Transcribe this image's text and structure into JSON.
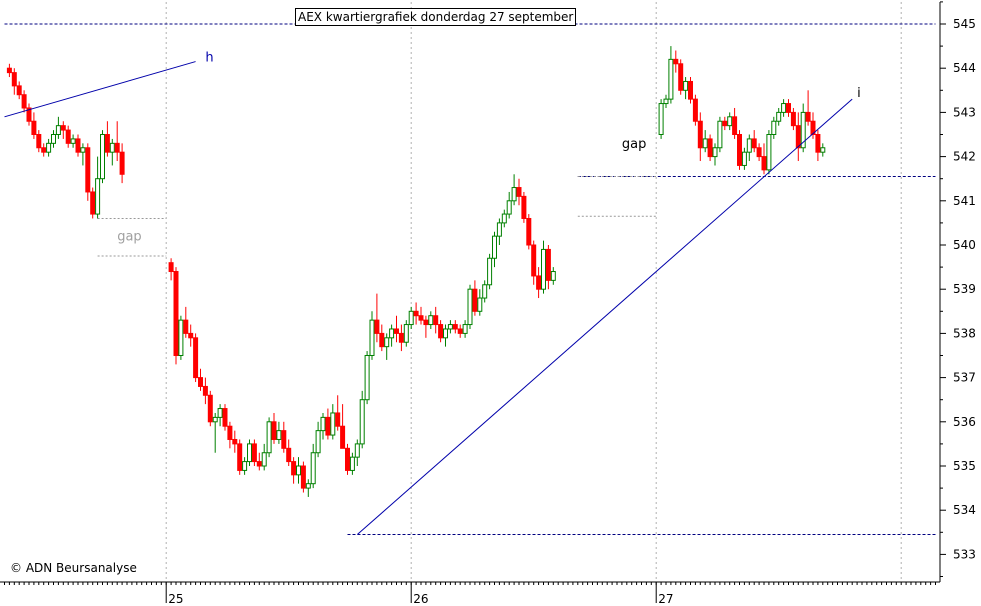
{
  "chart_data": {
    "type": "candlestick",
    "title": "AEX kwartiergrafiek donderdag 27 september",
    "copyright": "© ADN Beursanalyse",
    "colors": {
      "up": "#008000",
      "down": "#ff0000",
      "trendline": "#0000aa",
      "grid": "#b0b0b0",
      "level": "#000080",
      "gap_line": "#999999",
      "gap_label": "#000000",
      "gap_label_faded": "#a0a0a0"
    },
    "y_axis": {
      "side": "right",
      "min": 532.5,
      "max": 545.5,
      "ticks": [
        533,
        534,
        535,
        536,
        537,
        538,
        539,
        540,
        541,
        542,
        543,
        544,
        545
      ]
    },
    "x_axis": {
      "labels": [
        {
          "label": "25",
          "index": 33
        },
        {
          "label": "26",
          "index": 83
        },
        {
          "label": "27",
          "index": 133
        }
      ],
      "minor_gridlines_at": [
        33,
        83,
        133,
        183
      ]
    },
    "x_index_range": [
      0,
      190
    ],
    "horizontal_levels": [
      {
        "value": 545,
        "from": 0,
        "to": 190,
        "style": "dashed"
      },
      {
        "value": 541.55,
        "from": 117,
        "to": 190,
        "style": "dashed"
      },
      {
        "value": 533.45,
        "from": 70,
        "to": 190,
        "style": "dashed"
      }
    ],
    "gaps": [
      {
        "label": "gap",
        "y_from": 540.6,
        "y_to": 539.75,
        "x_from": 19,
        "x_to": 33,
        "label_at": {
          "x": 23,
          "y": 540.1
        },
        "faded": true
      },
      {
        "label": "gap",
        "y_from": 541.55,
        "y_to": 540.65,
        "x_from": 117,
        "x_to": 133,
        "label_at": {
          "x": 126,
          "y": 542.2
        },
        "faded": false
      }
    ],
    "annotations": [
      {
        "label": "h",
        "x": 41,
        "y": 544.15
      },
      {
        "label": "i",
        "x": 174,
        "y": 543.35
      }
    ],
    "trendlines": [
      {
        "from": [
          0,
          542.9
        ],
        "to": [
          39,
          544.15
        ]
      },
      {
        "from": [
          72,
          533.45
        ],
        "to": [
          173,
          543.3
        ]
      }
    ],
    "candles": [
      [
        1,
        544.0,
        544.1,
        543.8,
        543.9
      ],
      [
        2,
        543.9,
        544.0,
        543.4,
        543.6
      ],
      [
        3,
        543.6,
        543.7,
        543.3,
        543.4
      ],
      [
        4,
        543.4,
        543.5,
        543.0,
        543.1
      ],
      [
        5,
        543.1,
        543.2,
        542.7,
        542.8
      ],
      [
        6,
        542.8,
        543.0,
        542.4,
        542.5
      ],
      [
        7,
        542.5,
        542.6,
        542.1,
        542.2
      ],
      [
        8,
        542.2,
        542.3,
        542.0,
        542.1
      ],
      [
        9,
        542.1,
        542.4,
        542.0,
        542.3
      ],
      [
        10,
        542.3,
        542.6,
        542.2,
        542.5
      ],
      [
        11,
        542.5,
        542.9,
        542.4,
        542.7
      ],
      [
        12,
        542.7,
        542.8,
        542.4,
        542.6
      ],
      [
        13,
        542.6,
        542.7,
        542.2,
        542.3
      ],
      [
        14,
        542.3,
        542.5,
        542.2,
        542.4
      ],
      [
        15,
        542.4,
        542.5,
        542.0,
        542.1
      ],
      [
        16,
        542.1,
        542.3,
        541.8,
        542.2
      ],
      [
        17,
        542.2,
        542.3,
        541.0,
        541.2
      ],
      [
        18,
        541.2,
        541.3,
        540.6,
        540.7
      ],
      [
        19,
        540.7,
        542.0,
        540.6,
        541.5
      ],
      [
        20,
        541.5,
        542.6,
        541.4,
        542.5
      ],
      [
        21,
        542.5,
        542.8,
        542.0,
        542.1
      ],
      [
        22,
        542.1,
        542.4,
        541.8,
        542.3
      ],
      [
        23,
        542.3,
        542.8,
        541.9,
        542.1
      ],
      [
        24,
        542.1,
        542.3,
        541.4,
        541.6
      ],
      [
        34,
        539.6,
        539.7,
        539.2,
        539.4
      ],
      [
        35,
        539.4,
        539.5,
        537.3,
        537.5
      ],
      [
        36,
        537.5,
        538.4,
        537.4,
        538.3
      ],
      [
        37,
        538.3,
        538.6,
        537.9,
        538.0
      ],
      [
        38,
        538.0,
        538.2,
        537.7,
        537.9
      ],
      [
        39,
        537.9,
        538.0,
        536.9,
        537.0
      ],
      [
        40,
        537.0,
        537.2,
        536.7,
        536.8
      ],
      [
        41,
        536.8,
        537.0,
        536.4,
        536.6
      ],
      [
        42,
        536.6,
        536.7,
        535.9,
        536.0
      ],
      [
        43,
        536.0,
        536.2,
        535.3,
        536.1
      ],
      [
        44,
        536.1,
        536.4,
        535.9,
        536.3
      ],
      [
        45,
        536.3,
        536.4,
        535.8,
        535.9
      ],
      [
        46,
        535.9,
        536.0,
        535.4,
        535.6
      ],
      [
        47,
        535.6,
        535.8,
        535.3,
        535.5
      ],
      [
        48,
        535.5,
        535.6,
        534.8,
        534.9
      ],
      [
        49,
        534.9,
        535.2,
        534.8,
        535.1
      ],
      [
        50,
        535.1,
        535.6,
        535.0,
        535.5
      ],
      [
        51,
        535.5,
        535.6,
        535.0,
        535.1
      ],
      [
        52,
        535.1,
        535.3,
        534.9,
        535.0
      ],
      [
        53,
        535.0,
        535.5,
        534.9,
        535.3
      ],
      [
        54,
        535.3,
        536.1,
        535.2,
        536.0
      ],
      [
        55,
        536.0,
        536.2,
        535.5,
        535.6
      ],
      [
        56,
        535.6,
        536.0,
        535.5,
        535.8
      ],
      [
        57,
        535.8,
        536.0,
        535.3,
        535.4
      ],
      [
        58,
        535.4,
        535.6,
        535.0,
        535.1
      ],
      [
        59,
        535.1,
        535.2,
        534.6,
        534.8
      ],
      [
        60,
        534.8,
        535.2,
        534.6,
        535.0
      ],
      [
        61,
        535.0,
        535.1,
        534.4,
        534.5
      ],
      [
        62,
        534.5,
        534.7,
        534.3,
        534.6
      ],
      [
        63,
        534.6,
        535.5,
        534.5,
        535.3
      ],
      [
        64,
        535.3,
        536.0,
        535.2,
        535.8
      ],
      [
        65,
        535.8,
        536.2,
        535.6,
        536.1
      ],
      [
        66,
        536.1,
        536.3,
        535.6,
        535.7
      ],
      [
        67,
        535.7,
        536.4,
        535.6,
        536.2
      ],
      [
        68,
        536.2,
        536.6,
        535.8,
        535.9
      ],
      [
        69,
        535.9,
        536.4,
        535.5,
        535.4
      ],
      [
        70,
        535.4,
        535.5,
        534.8,
        534.9
      ],
      [
        71,
        534.9,
        535.3,
        534.8,
        535.2
      ],
      [
        72,
        535.2,
        535.6,
        535.0,
        535.5
      ],
      [
        73,
        535.5,
        536.7,
        535.4,
        536.5
      ],
      [
        74,
        536.5,
        537.6,
        536.4,
        537.5
      ],
      [
        75,
        537.5,
        538.5,
        537.4,
        538.3
      ],
      [
        76,
        538.3,
        538.9,
        537.8,
        538.0
      ],
      [
        77,
        538.0,
        538.2,
        537.6,
        537.7
      ],
      [
        78,
        537.7,
        538.0,
        537.4,
        537.9
      ],
      [
        79,
        537.9,
        538.2,
        537.7,
        538.1
      ],
      [
        80,
        538.1,
        538.4,
        537.8,
        538.0
      ],
      [
        81,
        538.0,
        538.2,
        537.6,
        537.8
      ],
      [
        82,
        537.8,
        538.3,
        537.7,
        538.2
      ],
      [
        83,
        538.2,
        538.6,
        538.1,
        538.5
      ],
      [
        84,
        538.5,
        538.7,
        538.2,
        538.4
      ],
      [
        85,
        538.4,
        538.6,
        538.2,
        538.3
      ],
      [
        86,
        538.3,
        538.4,
        537.9,
        538.2
      ],
      [
        87,
        538.2,
        538.5,
        538.1,
        538.4
      ],
      [
        88,
        538.4,
        538.6,
        538.0,
        538.2
      ],
      [
        89,
        538.2,
        538.3,
        537.8,
        537.9
      ],
      [
        90,
        537.9,
        538.2,
        537.7,
        538.1
      ],
      [
        91,
        538.1,
        538.3,
        538.0,
        538.2
      ],
      [
        92,
        538.2,
        538.3,
        538.0,
        538.1
      ],
      [
        93,
        538.1,
        538.2,
        537.9,
        538.0
      ],
      [
        94,
        538.0,
        538.3,
        537.9,
        538.2
      ],
      [
        95,
        538.2,
        539.1,
        538.1,
        539.0
      ],
      [
        96,
        539.0,
        539.2,
        538.4,
        538.5
      ],
      [
        97,
        538.5,
        539.0,
        538.4,
        538.8
      ],
      [
        98,
        538.8,
        539.2,
        538.7,
        539.1
      ],
      [
        99,
        539.1,
        539.8,
        539.0,
        539.7
      ],
      [
        100,
        539.7,
        540.3,
        539.5,
        540.2
      ],
      [
        101,
        540.2,
        540.6,
        540.0,
        540.5
      ],
      [
        102,
        540.5,
        540.8,
        540.4,
        540.7
      ],
      [
        103,
        540.7,
        541.2,
        540.6,
        541.0
      ],
      [
        104,
        541.0,
        541.6,
        540.9,
        541.3
      ],
      [
        105,
        541.3,
        541.5,
        540.9,
        541.1
      ],
      [
        106,
        541.1,
        541.2,
        540.5,
        540.6
      ],
      [
        107,
        540.6,
        540.7,
        539.9,
        540.0
      ],
      [
        108,
        540.0,
        540.1,
        539.1,
        539.3
      ],
      [
        109,
        539.3,
        539.5,
        538.8,
        539.0
      ],
      [
        110,
        539.0,
        540.1,
        538.9,
        539.9
      ],
      [
        111,
        539.9,
        540.0,
        539.0,
        539.2
      ],
      [
        112,
        539.2,
        539.5,
        539.1,
        539.4
      ],
      [
        134,
        542.5,
        543.3,
        542.4,
        543.2
      ],
      [
        135,
        543.2,
        543.4,
        543.1,
        543.3
      ],
      [
        136,
        543.3,
        544.5,
        543.2,
        544.2
      ],
      [
        137,
        544.2,
        544.4,
        543.9,
        544.1
      ],
      [
        138,
        544.1,
        544.2,
        543.4,
        543.5
      ],
      [
        139,
        543.5,
        543.8,
        543.3,
        543.7
      ],
      [
        140,
        543.7,
        543.8,
        543.2,
        543.3
      ],
      [
        141,
        543.3,
        543.4,
        542.7,
        542.8
      ],
      [
        142,
        542.8,
        543.0,
        541.9,
        542.2
      ],
      [
        143,
        542.2,
        542.6,
        542.1,
        542.4
      ],
      [
        144,
        542.4,
        542.5,
        541.9,
        542.0
      ],
      [
        145,
        542.0,
        542.3,
        541.8,
        542.2
      ],
      [
        146,
        542.2,
        542.9,
        542.1,
        542.8
      ],
      [
        147,
        542.8,
        542.9,
        542.6,
        542.7
      ],
      [
        148,
        542.7,
        543.0,
        542.6,
        542.9
      ],
      [
        149,
        542.9,
        543.1,
        542.4,
        542.5
      ],
      [
        150,
        542.5,
        542.6,
        541.7,
        541.8
      ],
      [
        151,
        541.8,
        542.2,
        541.7,
        542.1
      ],
      [
        152,
        542.1,
        542.5,
        541.9,
        542.4
      ],
      [
        153,
        542.4,
        542.6,
        542.1,
        542.2
      ],
      [
        154,
        542.2,
        542.3,
        541.9,
        542.0
      ],
      [
        155,
        542.0,
        542.3,
        541.6,
        541.7
      ],
      [
        156,
        541.7,
        542.6,
        541.6,
        542.5
      ],
      [
        157,
        542.5,
        542.9,
        542.4,
        542.8
      ],
      [
        158,
        542.8,
        543.1,
        542.7,
        543.0
      ],
      [
        159,
        543.0,
        543.3,
        542.9,
        543.2
      ],
      [
        160,
        543.2,
        543.3,
        542.9,
        543.0
      ],
      [
        161,
        543.0,
        543.1,
        542.6,
        542.7
      ],
      [
        162,
        542.7,
        543.0,
        541.9,
        542.2
      ],
      [
        163,
        542.2,
        543.2,
        542.1,
        543.0
      ],
      [
        164,
        543.0,
        543.5,
        542.7,
        542.8
      ],
      [
        165,
        542.8,
        543.0,
        542.4,
        542.5
      ],
      [
        166,
        542.5,
        542.6,
        541.9,
        542.1
      ],
      [
        167,
        542.1,
        542.3,
        542.0,
        542.2
      ]
    ]
  }
}
